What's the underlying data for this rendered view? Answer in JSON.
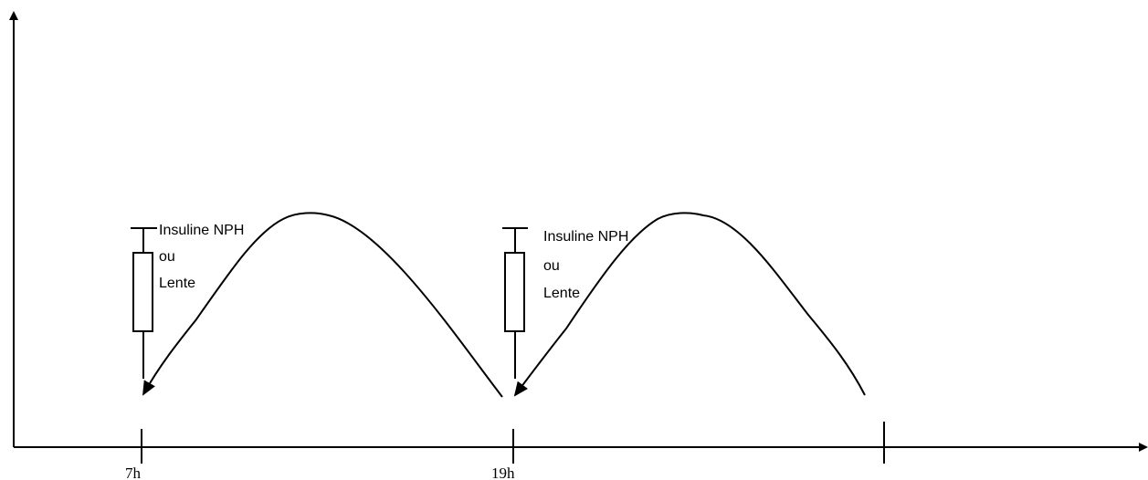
{
  "axis_labels": [
    "7h",
    "19h"
  ],
  "injections": [
    {
      "lines": [
        "Insuline NPH",
        "ou",
        "Lente"
      ]
    },
    {
      "lines": [
        "Insuline NPH",
        "ou",
        "Lente"
      ]
    }
  ]
}
